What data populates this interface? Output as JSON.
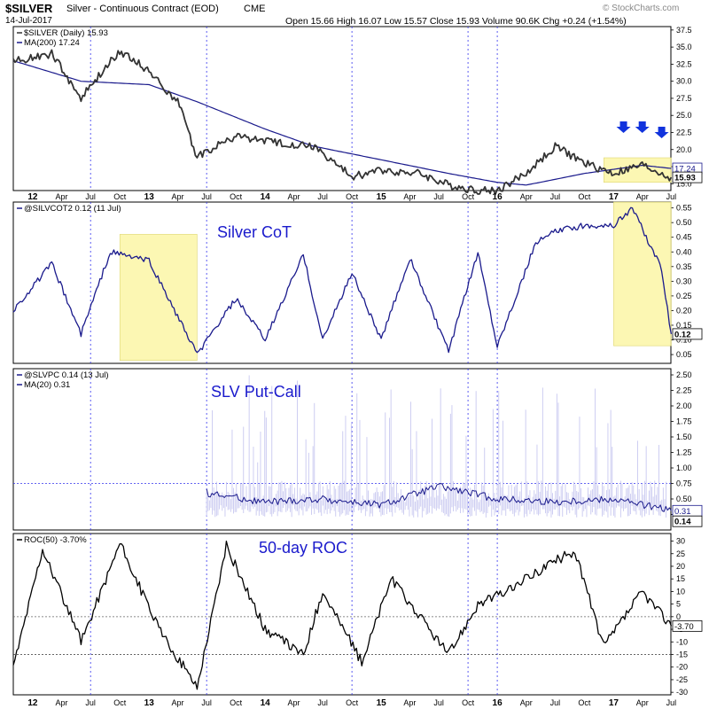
{
  "header": {
    "symbol": "$SILVER",
    "name": "Silver - Continuous Contract (EOD)",
    "exchange": "CME",
    "date": "14-Jul-2017",
    "stats": "Open 15.66  High 16.07  Low 15.57  Close 15.93  Volume 90.6K  Chg +0.24 (+1.54%)",
    "watermark": "© StockCharts.com"
  },
  "chart_data": [
    {
      "type": "line",
      "legend": [
        "$SILVER (Daily) 15.93",
        "MA(200) 17.24"
      ],
      "ylim": [
        14,
        38
      ],
      "yticks": [
        "15.0",
        "17.5",
        "20.0",
        "22.5",
        "25.0",
        "27.5",
        "30.0",
        "32.5",
        "35.0",
        "37.5"
      ],
      "last_labels": [
        "17.24",
        "15.93"
      ],
      "series": [
        {
          "name": "$SILVER",
          "x": [
            "2011-11",
            "2012-03",
            "2012-06",
            "2012-10",
            "2013-01",
            "2013-04",
            "2013-06",
            "2013-10",
            "2014-02",
            "2014-06",
            "2014-10",
            "2015-01",
            "2015-05",
            "2015-08",
            "2015-11",
            "2016-01",
            "2016-04",
            "2016-07",
            "2016-10",
            "2017-01",
            "2017-04",
            "2017-07"
          ],
          "values": [
            33,
            34,
            27.5,
            34.5,
            31.5,
            27,
            19,
            22,
            21,
            20.5,
            16,
            17,
            16.5,
            14.8,
            14,
            14,
            16.5,
            20.5,
            18,
            16.5,
            17.7,
            15.93
          ]
        },
        {
          "name": "MA(200)",
          "x": [
            "2011-11",
            "2012-06",
            "2013-01",
            "2013-06",
            "2014-01",
            "2014-06",
            "2015-01",
            "2015-08",
            "2016-01",
            "2016-04",
            "2016-10",
            "2017-04",
            "2017-07"
          ],
          "values": [
            33,
            30,
            29.5,
            27,
            23,
            20.5,
            18.5,
            16.5,
            15.2,
            14.8,
            16.5,
            17.7,
            17.24
          ]
        }
      ],
      "annotations": [
        "three down arrows over highlighted 2017 range"
      ]
    },
    {
      "type": "line",
      "legend": [
        "@SILVCOT2 0.12 (11 Jul)"
      ],
      "title_label": "Silver CoT",
      "ylim": [
        0.02,
        0.57
      ],
      "yticks": [
        "0.05",
        "0.10",
        "0.15",
        "0.20",
        "0.25",
        "0.30",
        "0.35",
        "0.40",
        "0.45",
        "0.50",
        "0.55"
      ],
      "last_label": "0.12",
      "series": [
        {
          "name": "@SILVCOT2",
          "x": [
            "2011-11",
            "2012-03",
            "2012-06",
            "2012-09",
            "2013-01",
            "2013-06",
            "2013-10",
            "2014-01",
            "2014-05",
            "2014-07",
            "2014-10",
            "2015-01",
            "2015-04",
            "2015-08",
            "2015-11",
            "2016-01",
            "2016-05",
            "2016-07",
            "2016-10",
            "2017-01",
            "2017-03",
            "2017-06",
            "2017-07"
          ],
          "values": [
            0.2,
            0.36,
            0.12,
            0.4,
            0.37,
            0.05,
            0.24,
            0.1,
            0.39,
            0.1,
            0.33,
            0.1,
            0.38,
            0.06,
            0.4,
            0.08,
            0.43,
            0.47,
            0.49,
            0.49,
            0.55,
            0.34,
            0.12
          ]
        }
      ]
    },
    {
      "type": "line",
      "legend": [
        "@SLVPC 0.14 (13 Jul)",
        "MA(20) 0.31"
      ],
      "title_label": "SLV Put-Call",
      "ylim": [
        0,
        2.6
      ],
      "yticks": [
        "0.25",
        "0.50",
        "0.75",
        "1.00",
        "1.25",
        "1.50",
        "1.75",
        "2.00",
        "2.25",
        "2.50"
      ],
      "last_labels": [
        "0.31",
        "0.14"
      ],
      "series": [
        {
          "name": "MA(20)",
          "x": [
            "2013-07",
            "2014-01",
            "2014-07",
            "2015-01",
            "2015-07",
            "2016-01",
            "2016-07",
            "2017-01",
            "2017-07"
          ],
          "values": [
            0.6,
            0.45,
            0.5,
            0.4,
            0.7,
            0.5,
            0.45,
            0.5,
            0.31
          ]
        }
      ]
    },
    {
      "type": "line",
      "legend": [
        "ROC(50) -3.70%"
      ],
      "title_label": "50-day ROC",
      "ylim": [
        -31,
        33
      ],
      "yticks": [
        "-30",
        "-25",
        "-20",
        "-15",
        "-10",
        "-5",
        "0",
        "5",
        "10",
        "15",
        "20",
        "25",
        "30"
      ],
      "last_label": "-3.70",
      "series": [
        {
          "name": "ROC(50)",
          "x": [
            "2011-11",
            "2012-02",
            "2012-06",
            "2012-10",
            "2013-02",
            "2013-06",
            "2013-09",
            "2014-01",
            "2014-05",
            "2014-07",
            "2014-11",
            "2015-02",
            "2015-08",
            "2015-11",
            "2016-02",
            "2016-06",
            "2016-09",
            "2016-12",
            "2017-04",
            "2017-07"
          ],
          "values": [
            -20,
            27,
            -10,
            29,
            -5,
            -28,
            28,
            -5,
            -15,
            10,
            -18,
            15,
            -15,
            5,
            10,
            20,
            26,
            -12,
            10,
            -3.7
          ]
        }
      ]
    }
  ],
  "x_axis_labels": [
    "12",
    "Apr",
    "Jul",
    "Oct",
    "13",
    "Apr",
    "Jul",
    "Oct",
    "14",
    "Apr",
    "Jul",
    "Oct",
    "15",
    "Apr",
    "Jul",
    "Oct",
    "16",
    "Apr",
    "Jul",
    "Oct",
    "17",
    "Apr",
    "Jul"
  ]
}
